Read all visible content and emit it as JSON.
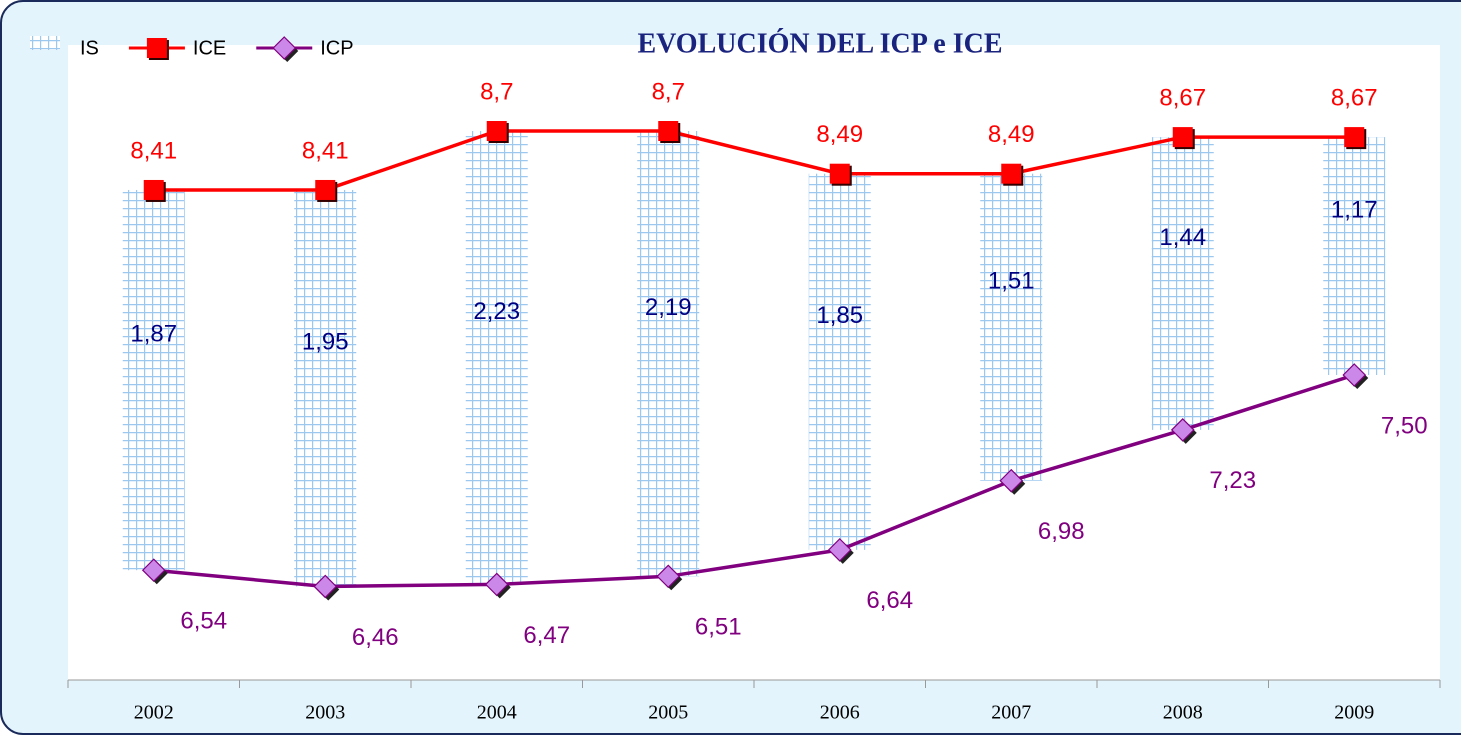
{
  "chart_data": {
    "type": "combo",
    "title": "EVOLUCIÓN DEL ICP e ICE",
    "categories": [
      "2002",
      "2003",
      "2004",
      "2005",
      "2006",
      "2007",
      "2008",
      "2009"
    ],
    "ylim": [
      6,
      9
    ],
    "series": [
      {
        "name": "IS",
        "type": "bar",
        "color": "#9cc8f0",
        "label_color": "#000080",
        "values": [
          1.87,
          1.95,
          2.23,
          2.19,
          1.85,
          1.51,
          1.44,
          1.17
        ],
        "value_labels": [
          "1,87",
          "1,95",
          "2,23",
          "2,19",
          "1,85",
          "1,51",
          "1,44",
          "1,17"
        ]
      },
      {
        "name": "ICE",
        "type": "line",
        "color": "#ff0000",
        "marker": "square",
        "values": [
          8.41,
          8.41,
          8.7,
          8.7,
          8.49,
          8.49,
          8.67,
          8.67
        ],
        "value_labels": [
          "8,41",
          "8,41",
          "8,7",
          "8,7",
          "8,49",
          "8,49",
          "8,67",
          "8,67"
        ]
      },
      {
        "name": "ICP",
        "type": "line",
        "color": "#800080",
        "marker_color": "#cc88e8",
        "marker": "diamond",
        "values": [
          6.54,
          6.46,
          6.47,
          6.51,
          6.64,
          6.98,
          7.23,
          7.5
        ],
        "value_labels": [
          "6,54",
          "6,46",
          "6,47",
          "6,51",
          "6,64",
          "6,98",
          "7,23",
          "7,50"
        ]
      }
    ]
  }
}
